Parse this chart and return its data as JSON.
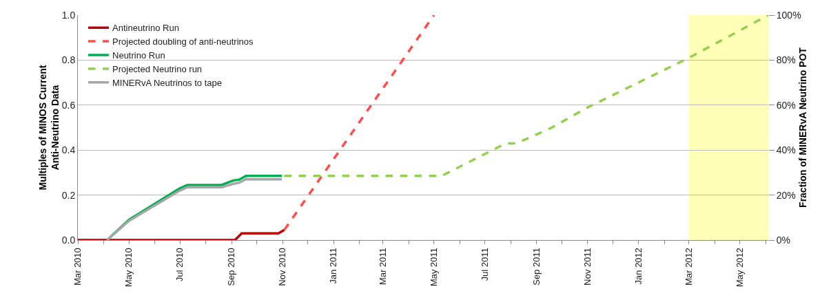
{
  "chart_data": {
    "type": "line",
    "ylabel": "Multiples of MINOS Current\nAnti-Neutrino Data",
    "y2label": "Fraction of MINERvA Neutrino POT",
    "series": [
      {
        "name": "Antineutrino Run",
        "color": "#c00000",
        "line_style": "solid",
        "x": [
          "2010-03-01",
          "2010-09-05",
          "2010-09-13",
          "2010-10-27",
          "2010-11-03"
        ],
        "values": [
          0,
          0,
          0.03,
          0.03,
          0.045
        ]
      },
      {
        "name": "Projected doubling of anti-neutrinos",
        "color": "#ff4d4d",
        "line_style": "dashed",
        "x": [
          "2010-11-03",
          "2011-05-01"
        ],
        "values": [
          0.045,
          1.0
        ]
      },
      {
        "name": "Neutrino Run",
        "color": "#00b050",
        "line_style": "solid",
        "x": [
          "2010-04-05",
          "2010-05-01",
          "2010-07-01",
          "2010-07-10",
          "2010-08-20",
          "2010-08-27",
          "2010-09-03",
          "2010-09-10",
          "2010-09-18",
          "2010-10-31"
        ],
        "values": [
          0,
          0.09,
          0.23,
          0.245,
          0.245,
          0.255,
          0.265,
          0.268,
          0.285,
          0.285
        ]
      },
      {
        "name": "Projected Neutrino run",
        "color": "#92d050",
        "line_style": "dashed",
        "x": [
          "2010-11-03",
          "2011-05-10",
          "2011-07-26",
          "2011-08-08",
          "2011-09-19",
          "2011-11-01",
          "2012-03-01",
          "2012-06-04"
        ],
        "values": [
          0.285,
          0.285,
          0.43,
          0.43,
          0.5,
          0.59,
          0.81,
          1.0
        ]
      },
      {
        "name": "MINERvA Neutrinos to tape",
        "color": "#a6a6a6",
        "line_style": "solid",
        "x": [
          "2010-04-05",
          "2010-05-01",
          "2010-07-01",
          "2010-07-10",
          "2010-08-20",
          "2010-09-03",
          "2010-09-10",
          "2010-09-18",
          "2010-10-31"
        ],
        "values": [
          0,
          0.085,
          0.22,
          0.235,
          0.235,
          0.25,
          0.255,
          0.27,
          0.27
        ]
      }
    ],
    "xlim": [
      "2010-03-01",
      "2012-06-04"
    ],
    "xticks": [
      {
        "value": "2010-03-01",
        "label": "Mar 2010"
      },
      {
        "value": "2010-04-01",
        "label": null
      },
      {
        "value": "2010-05-01",
        "label": "May 2010"
      },
      {
        "value": "2010-06-01",
        "label": null
      },
      {
        "value": "2010-07-01",
        "label": "Jul 2010"
      },
      {
        "value": "2010-08-01",
        "label": null
      },
      {
        "value": "2010-09-01",
        "label": "Sep 2010"
      },
      {
        "value": "2010-10-01",
        "label": null
      },
      {
        "value": "2010-11-01",
        "label": "Nov 2010"
      },
      {
        "value": "2010-12-01",
        "label": null
      },
      {
        "value": "2011-01-01",
        "label": "Jan 2011"
      },
      {
        "value": "2011-02-01",
        "label": null
      },
      {
        "value": "2011-03-01",
        "label": "Mar 2011"
      },
      {
        "value": "2011-04-01",
        "label": null
      },
      {
        "value": "2011-05-01",
        "label": "May 2011"
      },
      {
        "value": "2011-06-01",
        "label": null
      },
      {
        "value": "2011-07-01",
        "label": "Jul 2011"
      },
      {
        "value": "2011-08-01",
        "label": null
      },
      {
        "value": "2011-09-01",
        "label": "Sep 2011"
      },
      {
        "value": "2011-10-01",
        "label": null
      },
      {
        "value": "2011-11-01",
        "label": "Nov 2011"
      },
      {
        "value": "2011-12-01",
        "label": null
      },
      {
        "value": "2012-01-01",
        "label": "Jan 2012"
      },
      {
        "value": "2012-02-01",
        "label": null
      },
      {
        "value": "2012-03-01",
        "label": "Mar 2012"
      },
      {
        "value": "2012-04-01",
        "label": null
      },
      {
        "value": "2012-05-01",
        "label": "May 2012"
      },
      {
        "value": "2012-06-01",
        "label": null
      }
    ],
    "ylim": [
      0,
      1.0
    ],
    "yticks": [
      {
        "value": 0,
        "label": "0.0"
      },
      {
        "value": 0.2,
        "label": "0.2"
      },
      {
        "value": 0.4,
        "label": "0.4"
      },
      {
        "value": 0.6,
        "label": "0.6"
      },
      {
        "value": 0.8,
        "label": "0.8"
      },
      {
        "value": 1.0,
        "label": "1.0"
      }
    ],
    "y2lim": [
      0,
      100
    ],
    "y2ticks": [
      {
        "value": 0,
        "label": "0%"
      },
      {
        "value": 20,
        "label": "20%"
      },
      {
        "value": 40,
        "label": "40%"
      },
      {
        "value": 60,
        "label": "60%"
      },
      {
        "value": 80,
        "label": "80%"
      },
      {
        "value": 100,
        "label": "100%"
      }
    ],
    "bands": [
      {
        "axis": "x",
        "from": "2012-03-01",
        "to": "2012-06-04",
        "color": "#ffff99"
      }
    ],
    "grid": "y",
    "legend": "top left",
    "marker": "none"
  }
}
